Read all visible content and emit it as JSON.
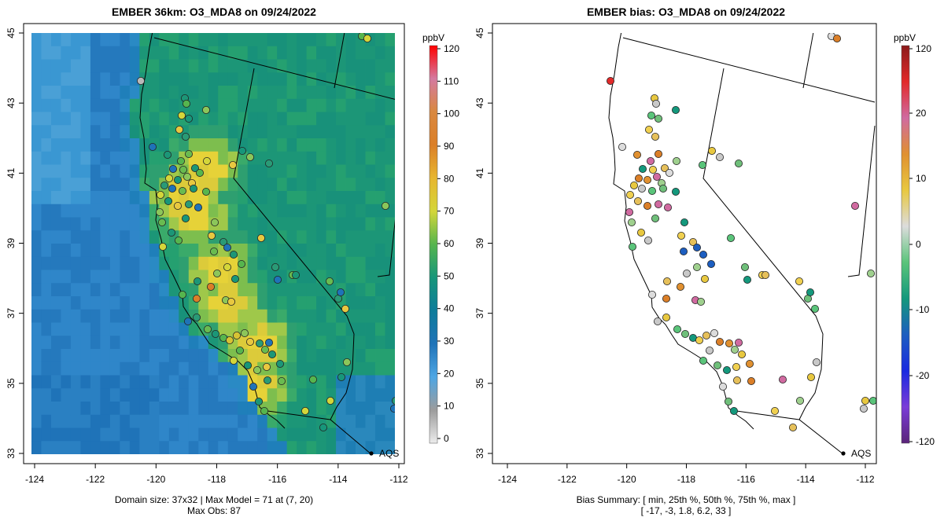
{
  "left_panel": {
    "title": "EMBER 36km: O3_MDA8 on 09/24/2022",
    "footer_line1": "Domain size: 37x32 | Max Model = 71 at (7, 20)",
    "footer_line2": "Max Obs: 87",
    "colorbar": {
      "unit": "ppbV",
      "ticks": [
        "0",
        "10",
        "20",
        "30",
        "40",
        "50",
        "60",
        "70",
        "80",
        "90",
        "100",
        "110",
        "120"
      ],
      "stops": [
        "#ececec",
        "#9c9c9c",
        "#4ea6e4",
        "#1f73b8",
        "#0e7c9a",
        "#17967a",
        "#56b54e",
        "#d4d63a",
        "#e7b630",
        "#db7f28",
        "#d9883f",
        "#d47aa0",
        "#ff0000"
      ]
    },
    "station_label": "AQS"
  },
  "right_panel": {
    "title": "EMBER bias: O3_MDA8 on 09/24/2022",
    "footer_line1": "Bias Summary: [ min, 25th %, 50th %, 75th %, max ]",
    "footer_line2": "[ -17,   -3,   1.8,   6.2,   33 ]",
    "colorbar": {
      "unit": "ppbV",
      "ticks": [
        "120",
        "20",
        "10",
        "0",
        "-10",
        "-20",
        "-120"
      ],
      "stops": [
        "#8b1a1a",
        "#e22a2a",
        "#d06aa0",
        "#e09030",
        "#e8c840",
        "#dcdcdc",
        "#5ac47a",
        "#14987c",
        "#1d5ec0",
        "#1a2ae0",
        "#7a3cd8",
        "#5a2478"
      ]
    },
    "station_label": "AQS"
  },
  "axes": {
    "x_ticks": [
      "-124",
      "-122",
      "-120",
      "-118",
      "-116",
      "-114",
      "-112"
    ],
    "y_ticks": [
      "33",
      "35",
      "37",
      "39",
      "41",
      "43",
      "45"
    ]
  },
  "colors": {
    "ocean_model": "#2f86c9",
    "land_model": "#1c9677",
    "hotspot": "#e6d238"
  }
}
